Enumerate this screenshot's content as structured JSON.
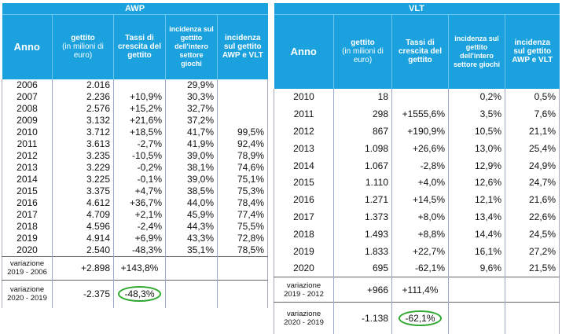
{
  "awp": {
    "title": "AWP",
    "headers": {
      "anno": "Anno",
      "gettito": "gettito",
      "gettito_sub": "(in milioni di euro)",
      "tassi": "Tassi di crescita del gettito",
      "incidenza_settore": "incidenza sul gettito dell'intero settore giochi",
      "incidenza_awp_vlt": "incidenza sul gettito AWP e VLT"
    },
    "rows": [
      {
        "anno": "2006",
        "gettito": "2.016",
        "tasso": "",
        "inc_settore": "29,9%",
        "inc_awp_vlt": ""
      },
      {
        "anno": "2007",
        "gettito": "2.236",
        "tasso": "+10,9%",
        "inc_settore": "30,3%",
        "inc_awp_vlt": ""
      },
      {
        "anno": "2008",
        "gettito": "2.576",
        "tasso": "+15,2%",
        "inc_settore": "32,7%",
        "inc_awp_vlt": ""
      },
      {
        "anno": "2009",
        "gettito": "3.132",
        "tasso": "+21,6%",
        "inc_settore": "37,2%",
        "inc_awp_vlt": ""
      },
      {
        "anno": "2010",
        "gettito": "3.712",
        "tasso": "+18,5%",
        "inc_settore": "41,7%",
        "inc_awp_vlt": "99,5%"
      },
      {
        "anno": "2011",
        "gettito": "3.613",
        "tasso": "-2,7%",
        "inc_settore": "41,9%",
        "inc_awp_vlt": "92,4%"
      },
      {
        "anno": "2012",
        "gettito": "3.235",
        "tasso": "-10,5%",
        "inc_settore": "39,0%",
        "inc_awp_vlt": "78,9%"
      },
      {
        "anno": "2013",
        "gettito": "3.229",
        "tasso": "-0,2%",
        "inc_settore": "38,1%",
        "inc_awp_vlt": "74,6%"
      },
      {
        "anno": "2014",
        "gettito": "3.225",
        "tasso": "-0,1%",
        "inc_settore": "39,0%",
        "inc_awp_vlt": "75,1%"
      },
      {
        "anno": "2015",
        "gettito": "3.375",
        "tasso": "+4,7%",
        "inc_settore": "38,5%",
        "inc_awp_vlt": "75,3%"
      },
      {
        "anno": "2016",
        "gettito": "4.612",
        "tasso": "+36,7%",
        "inc_settore": "44,0%",
        "inc_awp_vlt": "78,4%"
      },
      {
        "anno": "2017",
        "gettito": "4.709",
        "tasso": "+2,1%",
        "inc_settore": "45,9%",
        "inc_awp_vlt": "77,4%"
      },
      {
        "anno": "2018",
        "gettito": "4.596",
        "tasso": "-2,4%",
        "inc_settore": "44,3%",
        "inc_awp_vlt": "75,5%"
      },
      {
        "anno": "2019",
        "gettito": "4.914",
        "tasso": "+6,9%",
        "inc_settore": "43,3%",
        "inc_awp_vlt": "72,8%"
      },
      {
        "anno": "2020",
        "gettito": "2.540",
        "tasso": "-48,3%",
        "inc_settore": "35,1%",
        "inc_awp_vlt": "78,5%"
      }
    ],
    "variazioni": [
      {
        "label1": "variazione",
        "label2": "2019 - 2006",
        "gettito": "+2.898",
        "tasso": "+143,8%"
      },
      {
        "label1": "variazione",
        "label2": "2020 - 2019",
        "gettito": "-2.375",
        "tasso": "-48,3%"
      }
    ]
  },
  "vlt": {
    "title": "VLT",
    "headers": {
      "anno": "Anno",
      "gettito": "gettito",
      "gettito_sub": "(in milioni di euro)",
      "tassi": "Tassi di crescita del gettito",
      "incidenza_settore": "incidenza sul gettito dell'intero settore giochi",
      "incidenza_awp_vlt": "incidenza sul gettito AWP e VLT"
    },
    "rows": [
      {
        "anno": "2010",
        "gettito": "18",
        "tasso": "",
        "inc_settore": "0,2%",
        "inc_awp_vlt": "0,5%"
      },
      {
        "anno": "2011",
        "gettito": "298",
        "tasso": "+1555,6%",
        "inc_settore": "3,5%",
        "inc_awp_vlt": "7,6%"
      },
      {
        "anno": "2012",
        "gettito": "867",
        "tasso": "+190,9%",
        "inc_settore": "10,5%",
        "inc_awp_vlt": "21,1%"
      },
      {
        "anno": "2013",
        "gettito": "1.098",
        "tasso": "+26,6%",
        "inc_settore": "13,0%",
        "inc_awp_vlt": "25,4%"
      },
      {
        "anno": "2014",
        "gettito": "1.067",
        "tasso": "-2,8%",
        "inc_settore": "12,9%",
        "inc_awp_vlt": "24,9%"
      },
      {
        "anno": "2015",
        "gettito": "1.110",
        "tasso": "+4,0%",
        "inc_settore": "12,6%",
        "inc_awp_vlt": "24,7%"
      },
      {
        "anno": "2016",
        "gettito": "1.271",
        "tasso": "+14,5%",
        "inc_settore": "12,1%",
        "inc_awp_vlt": "21,6%"
      },
      {
        "anno": "2017",
        "gettito": "1.373",
        "tasso": "+8,0%",
        "inc_settore": "13,4%",
        "inc_awp_vlt": "22,6%"
      },
      {
        "anno": "2018",
        "gettito": "1.493",
        "tasso": "+8,8%",
        "inc_settore": "14,4%",
        "inc_awp_vlt": "24,5%"
      },
      {
        "anno": "2019",
        "gettito": "1.833",
        "tasso": "+22,7%",
        "inc_settore": "16,1%",
        "inc_awp_vlt": "27,2%"
      },
      {
        "anno": "2020",
        "gettito": "695",
        "tasso": "-62,1%",
        "inc_settore": "9,6%",
        "inc_awp_vlt": "21,5%"
      }
    ],
    "variazioni": [
      {
        "label1": "variazione",
        "label2": "2019 - 2012",
        "gettito": "+966",
        "tasso": "+111,4%"
      },
      {
        "label1": "variazione",
        "label2": "2020 - 2019",
        "gettito": "-1.138",
        "tasso": "-62,1%"
      }
    ]
  },
  "colors": {
    "header_bg": "#1aa1de",
    "highlight_ring": "#2ea82e"
  }
}
